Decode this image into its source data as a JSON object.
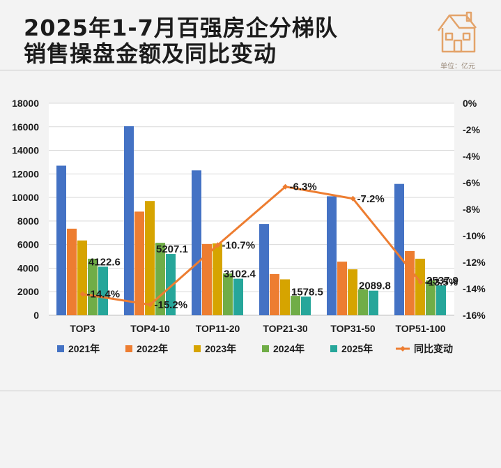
{
  "header": {
    "title_line1": "2025年1-7月百强房企分梯队",
    "title_line2": "销售操盘金额及同比变动",
    "unit": "单位：亿元",
    "logo_icon": "house-logo-icon"
  },
  "colors": {
    "s2021": "#4472c4",
    "s2022": "#ed7d31",
    "s2023": "#d6a400",
    "s2024": "#70ad47",
    "s2025": "#26a69a",
    "yoy": "#ed7d31",
    "logo": "#e3a36a"
  },
  "chart_data": {
    "type": "bar",
    "categories": [
      "TOP3",
      "TOP4-10",
      "TOP11-20",
      "TOP21-30",
      "TOP31-50",
      "TOP51-100"
    ],
    "series": [
      {
        "name": "2021年",
        "values": [
          12700,
          16050,
          12300,
          7750,
          10100,
          11150
        ]
      },
      {
        "name": "2022年",
        "values": [
          7350,
          8800,
          6050,
          3500,
          4550,
          5450
        ]
      },
      {
        "name": "2023年",
        "values": [
          6350,
          9700,
          6100,
          3050,
          3900,
          4800
        ]
      },
      {
        "name": "2024年",
        "values": [
          4800,
          6150,
          3550,
          1650,
          2200,
          2950
        ]
      },
      {
        "name": "2025年",
        "values": [
          4122.6,
          5207.1,
          3102.4,
          1578.5,
          2089.8,
          2537.9
        ]
      }
    ],
    "bar_labels": [
      "4122.6",
      "5207.1",
      "3102.4",
      "1578.5",
      "2089.8",
      "2537.9"
    ],
    "line": {
      "name": "同比变动",
      "values": [
        -14.4,
        -15.2,
        -10.7,
        -6.3,
        -7.2,
        -13.5
      ],
      "labels": [
        "-14.4%",
        "-15.2%",
        "-10.7%",
        "-6.3%",
        "-7.2%",
        "-13.5%"
      ]
    },
    "y_left": {
      "min": 0,
      "max": 18000,
      "ticks": [
        "0",
        "2000",
        "4000",
        "6000",
        "8000",
        "10000",
        "12000",
        "14000",
        "16000",
        "18000"
      ]
    },
    "y_right": {
      "min": -16,
      "max": 0,
      "ticks": [
        "0%",
        "-2%",
        "-4%",
        "-6%",
        "-8%",
        "-10%",
        "-12%",
        "-14%",
        "-16%"
      ]
    },
    "grid": true,
    "legend_position": "bottom"
  }
}
